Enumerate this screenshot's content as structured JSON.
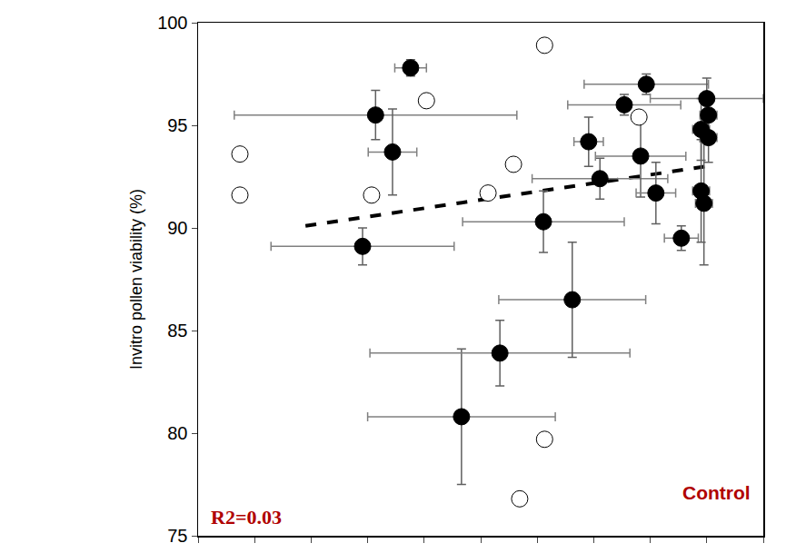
{
  "chart_data": {
    "type": "scatter",
    "y_label": "Invitro pollen viability (%)",
    "annotations": [
      "R2=0.03",
      "Control"
    ],
    "xlim": [
      0,
      100
    ],
    "xticks": [
      0,
      10,
      20,
      30,
      40,
      50,
      60,
      70,
      80,
      90,
      100
    ],
    "ylim": [
      75,
      100
    ],
    "yticks": [
      75,
      80,
      85,
      90,
      95,
      100
    ],
    "tick_labels": "y",
    "grid": false,
    "series": [
      {
        "color": "#000000",
        "marker": "filled_circle",
        "x": [
          37.6,
          31.4,
          34.4,
          29.1,
          46.6,
          53.4,
          66.2,
          61.1,
          69.1,
          71.1,
          75.4,
          79.3,
          78.3,
          81.0,
          85.5,
          90.0,
          90.3,
          90.3,
          89.0,
          89.0,
          89.5
        ],
        "values": [
          97.8,
          95.5,
          93.7,
          89.1,
          80.8,
          83.9,
          86.5,
          90.3,
          94.2,
          92.4,
          96.0,
          97.0,
          93.5,
          91.7,
          89.5,
          96.3,
          95.5,
          94.4,
          94.8,
          91.8,
          91.2
        ],
        "x_error": [
          2.8,
          25.0,
          4.3,
          16.2,
          16.6,
          23.0,
          13.0,
          14.3,
          2.6,
          12.0,
          10.0,
          11.0,
          8.0,
          3.5,
          3.0,
          10.0,
          1.5,
          1.5,
          1.5,
          1.5,
          1.5
        ],
        "y_error": [
          0.4,
          1.2,
          2.1,
          0.9,
          3.3,
          1.6,
          2.8,
          1.5,
          1.2,
          1.0,
          0.5,
          0.5,
          2.0,
          1.5,
          0.6,
          1.0,
          1.0,
          1.2,
          1.5,
          2.5,
          3.0
        ]
      },
      {
        "color": "#ffffff",
        "marker": "open_circle",
        "x": [
          7.4,
          7.4,
          30.7,
          40.4,
          51.3,
          55.8,
          61.3,
          78.0,
          61.3,
          56.9
        ],
        "values": [
          93.6,
          91.6,
          91.6,
          96.2,
          91.7,
          93.1,
          98.9,
          95.4,
          79.7,
          76.8
        ]
      },
      {
        "type": "line",
        "color": "#000000",
        "line_style": "dash",
        "x": [
          19,
          90
        ],
        "values": [
          90.1,
          93.0
        ]
      }
    ]
  }
}
